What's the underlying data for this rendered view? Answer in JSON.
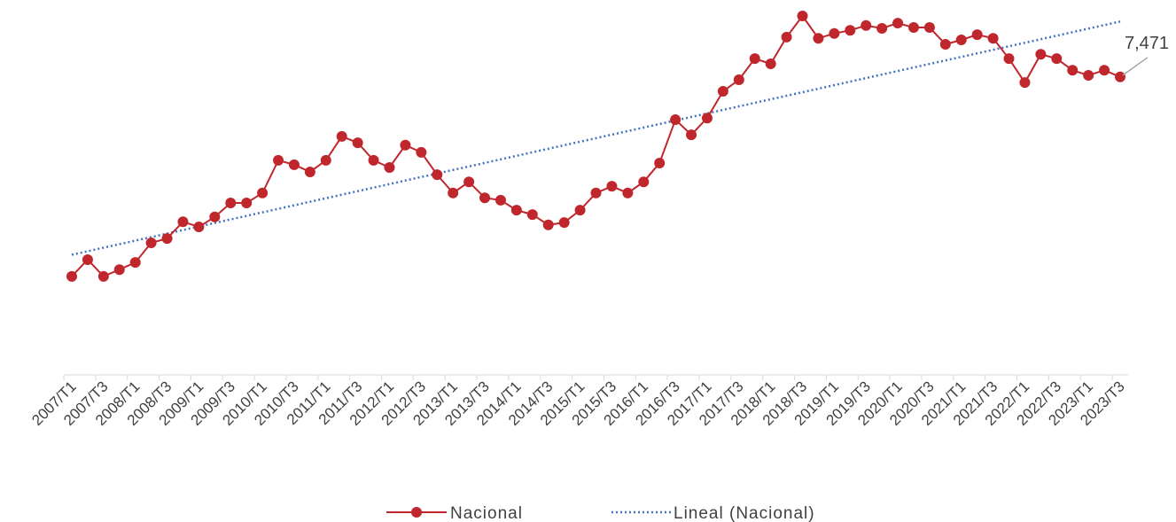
{
  "chart_data": {
    "type": "line",
    "categories": [
      "2007/T1",
      null,
      "2007/T3",
      null,
      "2008/T1",
      null,
      "2008/T3",
      null,
      "2009/T1",
      null,
      "2009/T3",
      null,
      "2010/T1",
      null,
      "2010/T3",
      null,
      "2011/T1",
      null,
      "2011/T3",
      null,
      "2012/T1",
      null,
      "2012/T3",
      null,
      "2013/T1",
      null,
      "2013/T3",
      null,
      "2014/T1",
      null,
      "2014/T3",
      null,
      "2015/T1",
      null,
      "2015/T3",
      null,
      "2016/T1",
      null,
      "2016/T3",
      null,
      "2017/T1",
      null,
      "2017/T3",
      null,
      "2018/T1",
      null,
      "2018/T3",
      null,
      "2019/T1",
      null,
      "2019/T3",
      null,
      "2020/T1",
      null,
      "2020/T3",
      null,
      "2021/T1",
      null,
      "2021/T3",
      null,
      "2022/T1",
      null,
      "2022/T3",
      null,
      "2023/T1",
      null,
      "2023/T3"
    ],
    "series": [
      {
        "name": "Nacional",
        "color": "#c0272d",
        "values": [
          2470,
          2890,
          2470,
          2640,
          2820,
          3310,
          3420,
          3840,
          3710,
          3960,
          4310,
          4310,
          4560,
          5380,
          5270,
          5090,
          5380,
          5980,
          5820,
          5380,
          5200,
          5760,
          5580,
          5020,
          4560,
          4840,
          4440,
          4380,
          4130,
          4020,
          3760,
          3820,
          4130,
          4560,
          4730,
          4560,
          4840,
          5310,
          6400,
          6020,
          6440,
          7110,
          7400,
          7930,
          7800,
          8470,
          9000,
          8440,
          8560,
          8640,
          8760,
          8690,
          8820,
          8710,
          8710,
          8290,
          8400,
          8530,
          8440,
          7930,
          7330,
          8040,
          7930,
          7640,
          7510,
          7640,
          7471
        ],
        "value_labels": [
          null,
          null,
          null,
          null,
          null,
          null,
          null,
          null,
          null,
          null,
          null,
          null,
          null,
          null,
          null,
          null,
          null,
          null,
          null,
          null,
          null,
          null,
          null,
          null,
          null,
          null,
          null,
          null,
          null,
          null,
          null,
          null,
          null,
          null,
          null,
          null,
          null,
          null,
          null,
          null,
          null,
          null,
          null,
          null,
          null,
          null,
          null,
          null,
          null,
          null,
          null,
          null,
          null,
          null,
          null,
          null,
          null,
          null,
          null,
          null,
          null,
          null,
          null,
          null,
          null,
          null,
          "7,471"
        ]
      }
    ],
    "trendline": {
      "name": "Lineal (Nacional)",
      "fit": "linear",
      "color": "#4472c4"
    },
    "ylim": [
      0,
      9000
    ]
  }
}
